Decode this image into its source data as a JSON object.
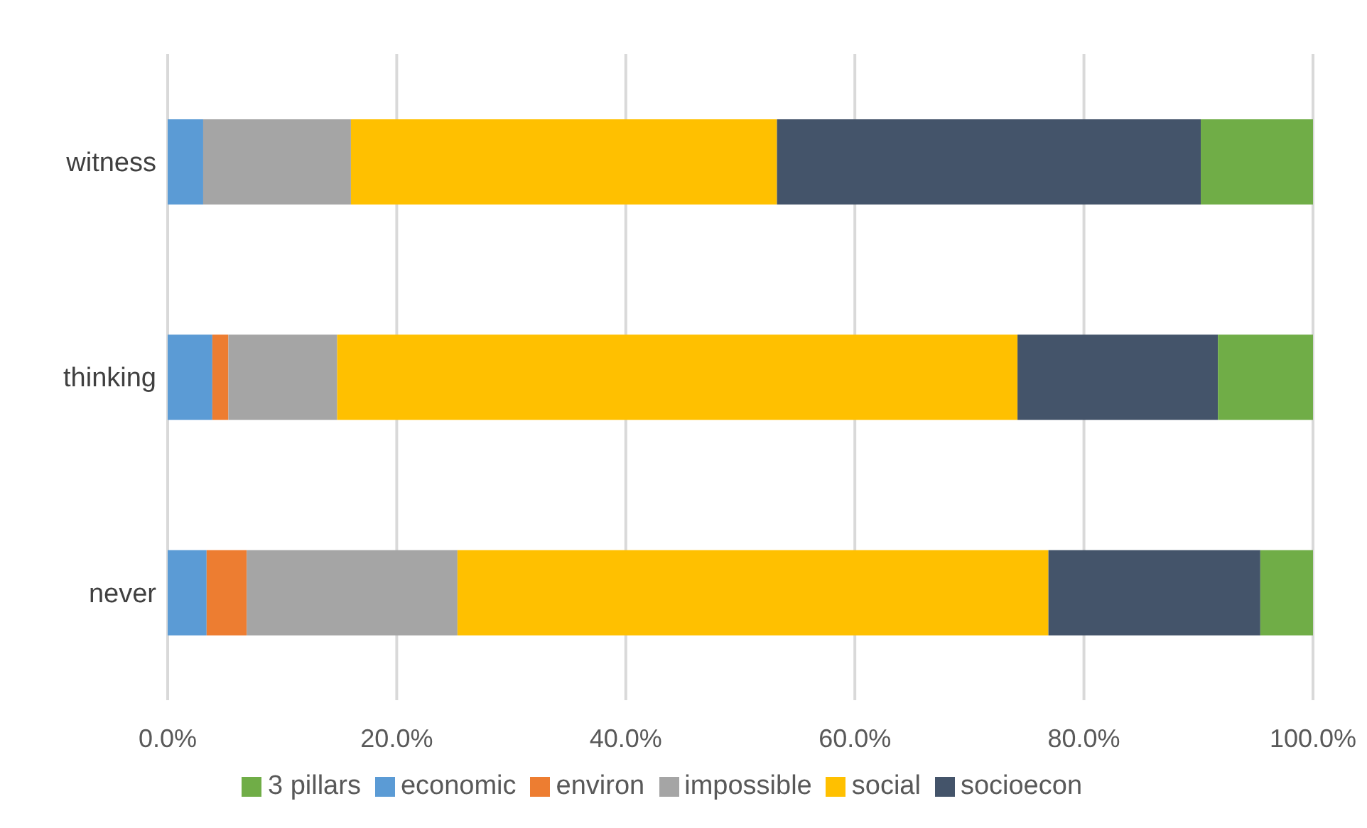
{
  "chart_data": {
    "type": "bar",
    "orientation": "horizontal",
    "stacked": true,
    "categories": [
      "witness",
      "thinking",
      "never"
    ],
    "series": [
      {
        "name": "economic",
        "color": "#5b9bd5",
        "values": [
          3.1,
          3.9,
          3.4
        ]
      },
      {
        "name": "environ",
        "color": "#ed7d31",
        "values": [
          0,
          1.4,
          3.5
        ]
      },
      {
        "name": "impossible",
        "color": "#a5a5a5",
        "values": [
          12.9,
          9.5,
          18.4
        ]
      },
      {
        "name": "social",
        "color": "#ffc000",
        "values": [
          37.2,
          59.4,
          51.6
        ]
      },
      {
        "name": "socioecon",
        "color": "#44546a",
        "values": [
          37.0,
          17.5,
          18.5
        ]
      },
      {
        "name": "3 pillars",
        "color": "#70ad47",
        "values": [
          9.8,
          8.3,
          4.6
        ]
      }
    ],
    "xlim": [
      0,
      100
    ],
    "xticks": [
      {
        "value": 0,
        "label": "0.0%"
      },
      {
        "value": 20,
        "label": "20.0%"
      },
      {
        "value": 40,
        "label": "40.0%"
      },
      {
        "value": 60,
        "label": "60.0%"
      },
      {
        "value": 80,
        "label": "80.0%"
      },
      {
        "value": 100,
        "label": "100.0%"
      }
    ],
    "grid": "x",
    "legend": "bottom"
  }
}
